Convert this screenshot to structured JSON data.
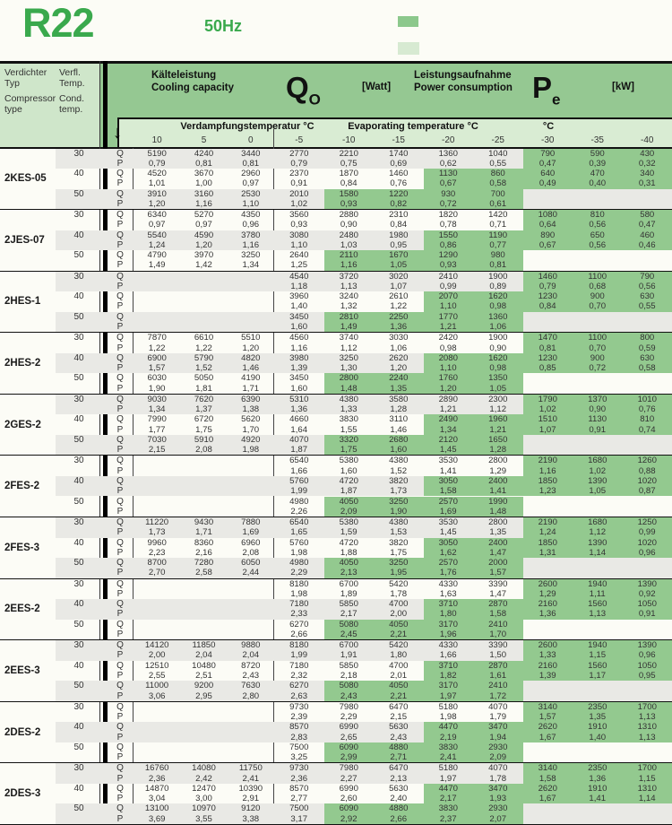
{
  "page": {
    "refrigerant": "R22",
    "frequency": "50Hz"
  },
  "colors": {
    "brand_green": "#3aa94d",
    "header_green": "#95c892",
    "highlight_green": "#93c98f",
    "subheader_green": "#d9ecd3",
    "panel_green": "#cfe6ca",
    "row_gray": "#e9e9e5",
    "swatch_dark": "#8cc88c",
    "swatch_light": "#d7ead2"
  },
  "left_header": {
    "type_de1": "Verdichter",
    "type_de2": "Typ",
    "type_en1": "Compressor",
    "type_en2": "type",
    "temp_de1": "Verfl.",
    "temp_de2": "Temp.",
    "temp_en1": "Cond.",
    "temp_en2": "temp."
  },
  "capacity": {
    "de": "Kälteleistung",
    "en": "Cooling capacity",
    "symbol": "Q",
    "subscript": "O",
    "unit": "[Watt]"
  },
  "power": {
    "de": "Leistungsaufnahme",
    "en": "Power consumption",
    "symbol": "P",
    "subscript": "e",
    "unit": "[kW]"
  },
  "evap": {
    "de": "Verdampfungstemperatur °C",
    "en": "Evaporating temperature °C",
    "right_unit": "°C",
    "temps": [
      "10",
      "5",
      "0",
      "-5",
      "-10",
      "-15",
      "-20",
      "-25",
      "-30",
      "-35",
      "-40"
    ]
  },
  "row_labels": {
    "q": "Q",
    "p": "P"
  },
  "highlight_cols": {
    "30": [
      8,
      10
    ],
    "40": [
      6,
      10
    ],
    "50": [
      4,
      7
    ]
  },
  "compressors": [
    {
      "type": "2KES-05",
      "rows": [
        {
          "cond": "30",
          "q": [
            "5190",
            "4240",
            "3440",
            "2770",
            "2210",
            "1740",
            "1360",
            "1040",
            "790",
            "590",
            "430"
          ],
          "p": [
            "0,79",
            "0,81",
            "0,81",
            "0,79",
            "0,75",
            "0,69",
            "0,62",
            "0,55",
            "0,47",
            "0,39",
            "0,32"
          ]
        },
        {
          "cond": "40",
          "q": [
            "4520",
            "3670",
            "2960",
            "2370",
            "1870",
            "1460",
            "1130",
            "860",
            "640",
            "470",
            "340"
          ],
          "p": [
            "1,01",
            "1,00",
            "0,97",
            "0,91",
            "0,84",
            "0,76",
            "0,67",
            "0,58",
            "0,49",
            "0,40",
            "0,31"
          ]
        },
        {
          "cond": "50",
          "q": [
            "3910",
            "3160",
            "2530",
            "2010",
            "1580",
            "1220",
            "930",
            "700",
            "",
            "",
            ""
          ],
          "p": [
            "1,20",
            "1,16",
            "1,10",
            "1,02",
            "0,93",
            "0,82",
            "0,72",
            "0,61",
            "",
            "",
            ""
          ]
        }
      ]
    },
    {
      "type": "2JES-07",
      "rows": [
        {
          "cond": "30",
          "q": [
            "6340",
            "5270",
            "4350",
            "3560",
            "2880",
            "2310",
            "1820",
            "1420",
            "1080",
            "810",
            "580"
          ],
          "p": [
            "0,97",
            "0,97",
            "0,96",
            "0,93",
            "0,90",
            "0,84",
            "0,78",
            "0,71",
            "0,64",
            "0,56",
            "0,47"
          ]
        },
        {
          "cond": "40",
          "q": [
            "5540",
            "4590",
            "3780",
            "3080",
            "2480",
            "1980",
            "1550",
            "1190",
            "890",
            "650",
            "460"
          ],
          "p": [
            "1,24",
            "1,20",
            "1,16",
            "1,10",
            "1,03",
            "0,95",
            "0,86",
            "0,77",
            "0,67",
            "0,56",
            "0,46"
          ]
        },
        {
          "cond": "50",
          "q": [
            "4790",
            "3970",
            "3250",
            "2640",
            "2110",
            "1670",
            "1290",
            "980",
            "",
            "",
            ""
          ],
          "p": [
            "1,49",
            "1,42",
            "1,34",
            "1,25",
            "1,16",
            "1,05",
            "0,93",
            "0,81",
            "",
            "",
            ""
          ]
        }
      ]
    },
    {
      "type": "2HES-1",
      "rows": [
        {
          "cond": "30",
          "q": [
            "",
            "",
            "",
            "4540",
            "3720",
            "3020",
            "2410",
            "1900",
            "1460",
            "1100",
            "790"
          ],
          "p": [
            "",
            "",
            "",
            "1,18",
            "1,13",
            "1,07",
            "0,99",
            "0,89",
            "0,79",
            "0,68",
            "0,56"
          ]
        },
        {
          "cond": "40",
          "q": [
            "",
            "",
            "",
            "3960",
            "3240",
            "2610",
            "2070",
            "1620",
            "1230",
            "900",
            "630"
          ],
          "p": [
            "",
            "",
            "",
            "1,40",
            "1,32",
            "1,22",
            "1,10",
            "0,98",
            "0,84",
            "0,70",
            "0,55"
          ]
        },
        {
          "cond": "50",
          "q": [
            "",
            "",
            "",
            "3450",
            "2810",
            "2250",
            "1770",
            "1360",
            "",
            "",
            ""
          ],
          "p": [
            "",
            "",
            "",
            "1,60",
            "1,49",
            "1,36",
            "1,21",
            "1,06",
            "",
            "",
            ""
          ]
        }
      ]
    },
    {
      "type": "2HES-2",
      "rows": [
        {
          "cond": "30",
          "q": [
            "7870",
            "6610",
            "5510",
            "4560",
            "3740",
            "3030",
            "2420",
            "1900",
            "1470",
            "1100",
            "800"
          ],
          "p": [
            "1,22",
            "1,22",
            "1,20",
            "1,16",
            "1,12",
            "1,06",
            "0,98",
            "0,90",
            "0,81",
            "0,70",
            "0,59"
          ]
        },
        {
          "cond": "40",
          "q": [
            "6900",
            "5790",
            "4820",
            "3980",
            "3250",
            "2620",
            "2080",
            "1620",
            "1230",
            "900",
            "630"
          ],
          "p": [
            "1,57",
            "1,52",
            "1,46",
            "1,39",
            "1,30",
            "1,20",
            "1,10",
            "0,98",
            "0,85",
            "0,72",
            "0,58"
          ]
        },
        {
          "cond": "50",
          "q": [
            "6030",
            "5050",
            "4190",
            "3450",
            "2800",
            "2240",
            "1760",
            "1350",
            "",
            "",
            ""
          ],
          "p": [
            "1,90",
            "1,81",
            "1,71",
            "1,60",
            "1,48",
            "1,35",
            "1,20",
            "1,05",
            "",
            "",
            ""
          ]
        }
      ]
    },
    {
      "type": "2GES-2",
      "rows": [
        {
          "cond": "30",
          "q": [
            "9030",
            "7620",
            "6390",
            "5310",
            "4380",
            "3580",
            "2890",
            "2300",
            "1790",
            "1370",
            "1010"
          ],
          "p": [
            "1,34",
            "1,37",
            "1,38",
            "1,36",
            "1,33",
            "1,28",
            "1,21",
            "1,12",
            "1,02",
            "0,90",
            "0,76"
          ]
        },
        {
          "cond": "40",
          "q": [
            "7990",
            "6720",
            "5620",
            "4660",
            "3830",
            "3110",
            "2490",
            "1960",
            "1510",
            "1130",
            "810"
          ],
          "p": [
            "1,77",
            "1,75",
            "1,70",
            "1,64",
            "1,55",
            "1,46",
            "1,34",
            "1,21",
            "1,07",
            "0,91",
            "0,74"
          ]
        },
        {
          "cond": "50",
          "q": [
            "7030",
            "5910",
            "4920",
            "4070",
            "3320",
            "2680",
            "2120",
            "1650",
            "",
            "",
            ""
          ],
          "p": [
            "2,15",
            "2,08",
            "1,98",
            "1,87",
            "1,75",
            "1,60",
            "1,45",
            "1,28",
            "",
            "",
            ""
          ]
        }
      ]
    },
    {
      "type": "2FES-2",
      "rows": [
        {
          "cond": "30",
          "q": [
            "",
            "",
            "",
            "6540",
            "5380",
            "4380",
            "3530",
            "2800",
            "2190",
            "1680",
            "1260"
          ],
          "p": [
            "",
            "",
            "",
            "1,66",
            "1,60",
            "1,52",
            "1,41",
            "1,29",
            "1,16",
            "1,02",
            "0,88"
          ]
        },
        {
          "cond": "40",
          "q": [
            "",
            "",
            "",
            "5760",
            "4720",
            "3820",
            "3050",
            "2400",
            "1850",
            "1390",
            "1020"
          ],
          "p": [
            "",
            "",
            "",
            "1,99",
            "1,87",
            "1,73",
            "1,58",
            "1,41",
            "1,23",
            "1,05",
            "0,87"
          ]
        },
        {
          "cond": "50",
          "q": [
            "",
            "",
            "",
            "4980",
            "4050",
            "3250",
            "2570",
            "1990",
            "",
            "",
            ""
          ],
          "p": [
            "",
            "",
            "",
            "2,26",
            "2,09",
            "1,90",
            "1,69",
            "1,48",
            "",
            "",
            ""
          ]
        }
      ]
    },
    {
      "type": "2FES-3",
      "rows": [
        {
          "cond": "30",
          "q": [
            "11220",
            "9430",
            "7880",
            "6540",
            "5380",
            "4380",
            "3530",
            "2800",
            "2190",
            "1680",
            "1250"
          ],
          "p": [
            "1,73",
            "1,71",
            "1,69",
            "1,65",
            "1,59",
            "1,53",
            "1,45",
            "1,35",
            "1,24",
            "1,12",
            "0,99"
          ]
        },
        {
          "cond": "40",
          "q": [
            "9960",
            "8360",
            "6960",
            "5760",
            "4720",
            "3820",
            "3050",
            "2400",
            "1850",
            "1390",
            "1020"
          ],
          "p": [
            "2,23",
            "2,16",
            "2,08",
            "1,98",
            "1,88",
            "1,75",
            "1,62",
            "1,47",
            "1,31",
            "1,14",
            "0,96"
          ]
        },
        {
          "cond": "50",
          "q": [
            "8700",
            "7280",
            "6050",
            "4980",
            "4050",
            "3250",
            "2570",
            "2000",
            "",
            "",
            ""
          ],
          "p": [
            "2,70",
            "2,58",
            "2,44",
            "2,29",
            "2,13",
            "1,95",
            "1,76",
            "1,57",
            "",
            "",
            ""
          ]
        }
      ]
    },
    {
      "type": "2EES-2",
      "rows": [
        {
          "cond": "30",
          "q": [
            "",
            "",
            "",
            "8180",
            "6700",
            "5420",
            "4330",
            "3390",
            "2600",
            "1940",
            "1390"
          ],
          "p": [
            "",
            "",
            "",
            "1,98",
            "1,89",
            "1,78",
            "1,63",
            "1,47",
            "1,29",
            "1,11",
            "0,92"
          ]
        },
        {
          "cond": "40",
          "q": [
            "",
            "",
            "",
            "7180",
            "5850",
            "4700",
            "3710",
            "2870",
            "2160",
            "1560",
            "1050"
          ],
          "p": [
            "",
            "",
            "",
            "2,33",
            "2,17",
            "2,00",
            "1,80",
            "1,58",
            "1,36",
            "1,13",
            "0,91"
          ]
        },
        {
          "cond": "50",
          "q": [
            "",
            "",
            "",
            "6270",
            "5080",
            "4050",
            "3170",
            "2410",
            "",
            "",
            ""
          ],
          "p": [
            "",
            "",
            "",
            "2,66",
            "2,45",
            "2,21",
            "1,96",
            "1,70",
            "",
            "",
            ""
          ]
        }
      ]
    },
    {
      "type": "2EES-3",
      "rows": [
        {
          "cond": "30",
          "q": [
            "14120",
            "11850",
            "9880",
            "8180",
            "6700",
            "5420",
            "4330",
            "3390",
            "2600",
            "1940",
            "1390"
          ],
          "p": [
            "2,00",
            "2,04",
            "2,04",
            "1,99",
            "1,91",
            "1,80",
            "1,66",
            "1,50",
            "1,33",
            "1,15",
            "0,96"
          ]
        },
        {
          "cond": "40",
          "q": [
            "12510",
            "10480",
            "8720",
            "7180",
            "5850",
            "4700",
            "3710",
            "2870",
            "2160",
            "1560",
            "1050"
          ],
          "p": [
            "2,55",
            "2,51",
            "2,43",
            "2,32",
            "2,18",
            "2,01",
            "1,82",
            "1,61",
            "1,39",
            "1,17",
            "0,95"
          ]
        },
        {
          "cond": "50",
          "q": [
            "11000",
            "9200",
            "7630",
            "6270",
            "5080",
            "4050",
            "3170",
            "2410",
            "",
            "",
            ""
          ],
          "p": [
            "3,06",
            "2,95",
            "2,80",
            "2,63",
            "2,43",
            "2,21",
            "1,97",
            "1,72",
            "",
            "",
            ""
          ]
        }
      ]
    },
    {
      "type": "2DES-2",
      "rows": [
        {
          "cond": "30",
          "q": [
            "",
            "",
            "",
            "9730",
            "7980",
            "6470",
            "5180",
            "4070",
            "3140",
            "2350",
            "1700"
          ],
          "p": [
            "",
            "",
            "",
            "2,39",
            "2,29",
            "2,15",
            "1,98",
            "1,79",
            "1,57",
            "1,35",
            "1,13"
          ]
        },
        {
          "cond": "40",
          "q": [
            "",
            "",
            "",
            "8570",
            "6990",
            "5630",
            "4470",
            "3470",
            "2620",
            "1910",
            "1310"
          ],
          "p": [
            "",
            "",
            "",
            "2,83",
            "2,65",
            "2,43",
            "2,19",
            "1,94",
            "1,67",
            "1,40",
            "1,13"
          ]
        },
        {
          "cond": "50",
          "q": [
            "",
            "",
            "",
            "7500",
            "6090",
            "4880",
            "3830",
            "2930",
            "",
            "",
            ""
          ],
          "p": [
            "",
            "",
            "",
            "3,25",
            "2,99",
            "2,71",
            "2,41",
            "2,09",
            "",
            "",
            ""
          ]
        }
      ]
    },
    {
      "type": "2DES-3",
      "rows": [
        {
          "cond": "30",
          "q": [
            "16760",
            "14080",
            "11750",
            "9730",
            "7980",
            "6470",
            "5180",
            "4070",
            "3140",
            "2350",
            "1700"
          ],
          "p": [
            "2,36",
            "2,42",
            "2,41",
            "2,36",
            "2,27",
            "2,13",
            "1,97",
            "1,78",
            "1,58",
            "1,36",
            "1,15"
          ]
        },
        {
          "cond": "40",
          "q": [
            "14870",
            "12470",
            "10390",
            "8570",
            "6990",
            "5630",
            "4470",
            "3470",
            "2620",
            "1910",
            "1310"
          ],
          "p": [
            "3,04",
            "3,00",
            "2,91",
            "2,77",
            "2,60",
            "2,40",
            "2,17",
            "1,93",
            "1,67",
            "1,41",
            "1,14"
          ]
        },
        {
          "cond": "50",
          "q": [
            "13100",
            "10970",
            "9120",
            "7500",
            "6090",
            "4880",
            "3830",
            "2930",
            "",
            "",
            ""
          ],
          "p": [
            "3,69",
            "3,55",
            "3,38",
            "3,17",
            "2,92",
            "2,66",
            "2,37",
            "2,07",
            "",
            "",
            ""
          ]
        }
      ]
    }
  ]
}
